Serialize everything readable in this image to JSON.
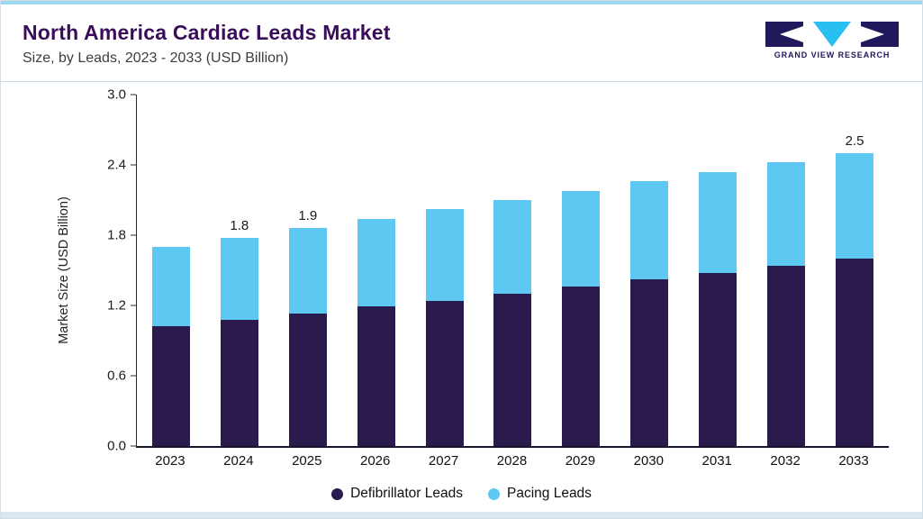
{
  "header": {
    "title": "North America Cardiac Leads Market",
    "subtitle": "Size, by Leads, 2023 - 2033 (USD Billion)",
    "logo_text": "GRAND VIEW RESEARCH"
  },
  "colors": {
    "title": "#3a0d5a",
    "accent_line": "#9ed7f0",
    "defibrillator": "#2b1b4d",
    "pacing": "#5ec8f2",
    "logo_navy": "#201a5d",
    "logo_cyan": "#29bff0"
  },
  "chart_data": {
    "type": "bar",
    "stacked": true,
    "title": "North America Cardiac Leads Market",
    "subtitle": "Size, by Leads, 2023 - 2033 (USD Billion)",
    "xlabel": "",
    "ylabel": "Market Size (USD Billion)",
    "ylim": [
      0,
      3.0
    ],
    "yticks": [
      0.0,
      0.6,
      1.2,
      1.8,
      2.4,
      3.0
    ],
    "grid": false,
    "legend_position": "bottom",
    "categories": [
      "2023",
      "2024",
      "2025",
      "2026",
      "2027",
      "2028",
      "2029",
      "2030",
      "2031",
      "2032",
      "2033"
    ],
    "series": [
      {
        "name": "Defibrillator Leads",
        "color": "#2b1b4d",
        "values": [
          1.02,
          1.08,
          1.13,
          1.19,
          1.24,
          1.3,
          1.36,
          1.42,
          1.48,
          1.54,
          1.6
        ]
      },
      {
        "name": "Pacing Leads",
        "color": "#5ec8f2",
        "values": [
          0.68,
          0.7,
          0.73,
          0.75,
          0.78,
          0.8,
          0.82,
          0.84,
          0.86,
          0.88,
          0.9
        ]
      }
    ],
    "totals": [
      1.7,
      1.78,
      1.86,
      1.94,
      2.02,
      2.1,
      2.18,
      2.26,
      2.34,
      2.42,
      2.5
    ],
    "bar_labels": [
      "",
      "1.8",
      "1.9",
      "",
      "",
      "",
      "",
      "",
      "",
      "",
      "2.5"
    ]
  }
}
